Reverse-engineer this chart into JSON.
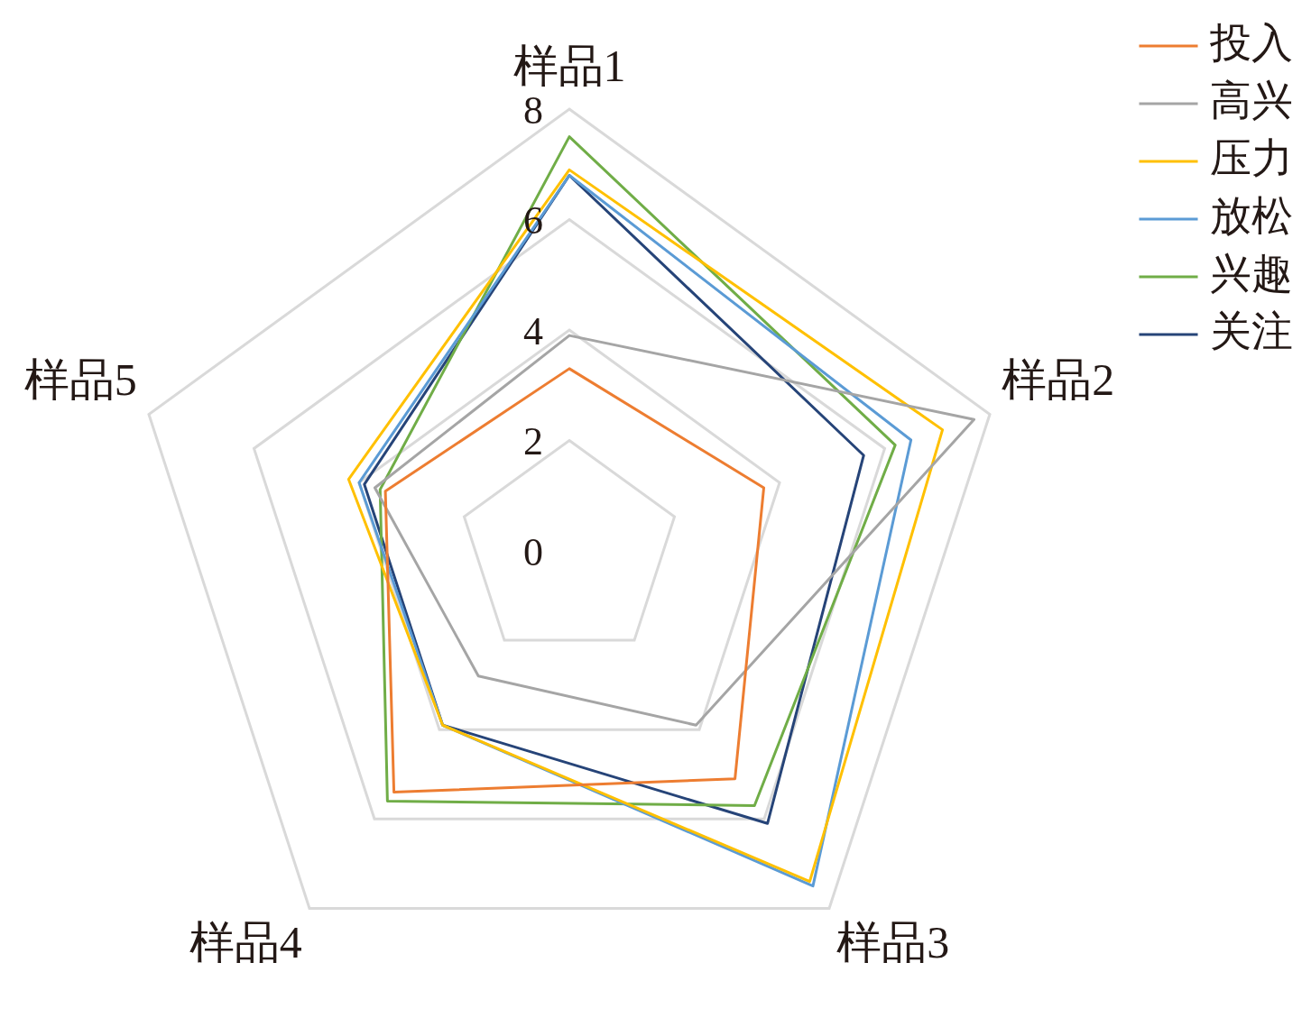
{
  "chart_data": {
    "type": "radar",
    "categories": [
      "样品1",
      "样品2",
      "样品3",
      "样品4",
      "样品5"
    ],
    "series": [
      {
        "name": "投入",
        "color": "#ed7d31",
        "values": [
          3.3,
          3.7,
          5.1,
          5.4,
          3.5
        ]
      },
      {
        "name": "高兴",
        "color": "#a5a5a5",
        "values": [
          3.9,
          7.7,
          3.9,
          2.8,
          3.7
        ]
      },
      {
        "name": "压力",
        "color": "#ffc000",
        "values": [
          6.9,
          7.1,
          7.4,
          3.9,
          4.2
        ]
      },
      {
        "name": "放松",
        "color": "#5b9bd5",
        "values": [
          6.8,
          6.5,
          7.5,
          3.9,
          4.0
        ]
      },
      {
        "name": "兴趣",
        "color": "#70ad47",
        "values": [
          7.5,
          6.2,
          5.7,
          5.6,
          3.6
        ]
      },
      {
        "name": "关注",
        "color": "#264478",
        "values": [
          6.8,
          5.6,
          6.1,
          3.9,
          3.9
        ]
      }
    ],
    "ylim": [
      0,
      8
    ],
    "yticks": [
      0,
      2,
      4,
      6,
      8
    ],
    "grid": true,
    "legend": "top right",
    "marker": "none",
    "line_style": "solid"
  }
}
